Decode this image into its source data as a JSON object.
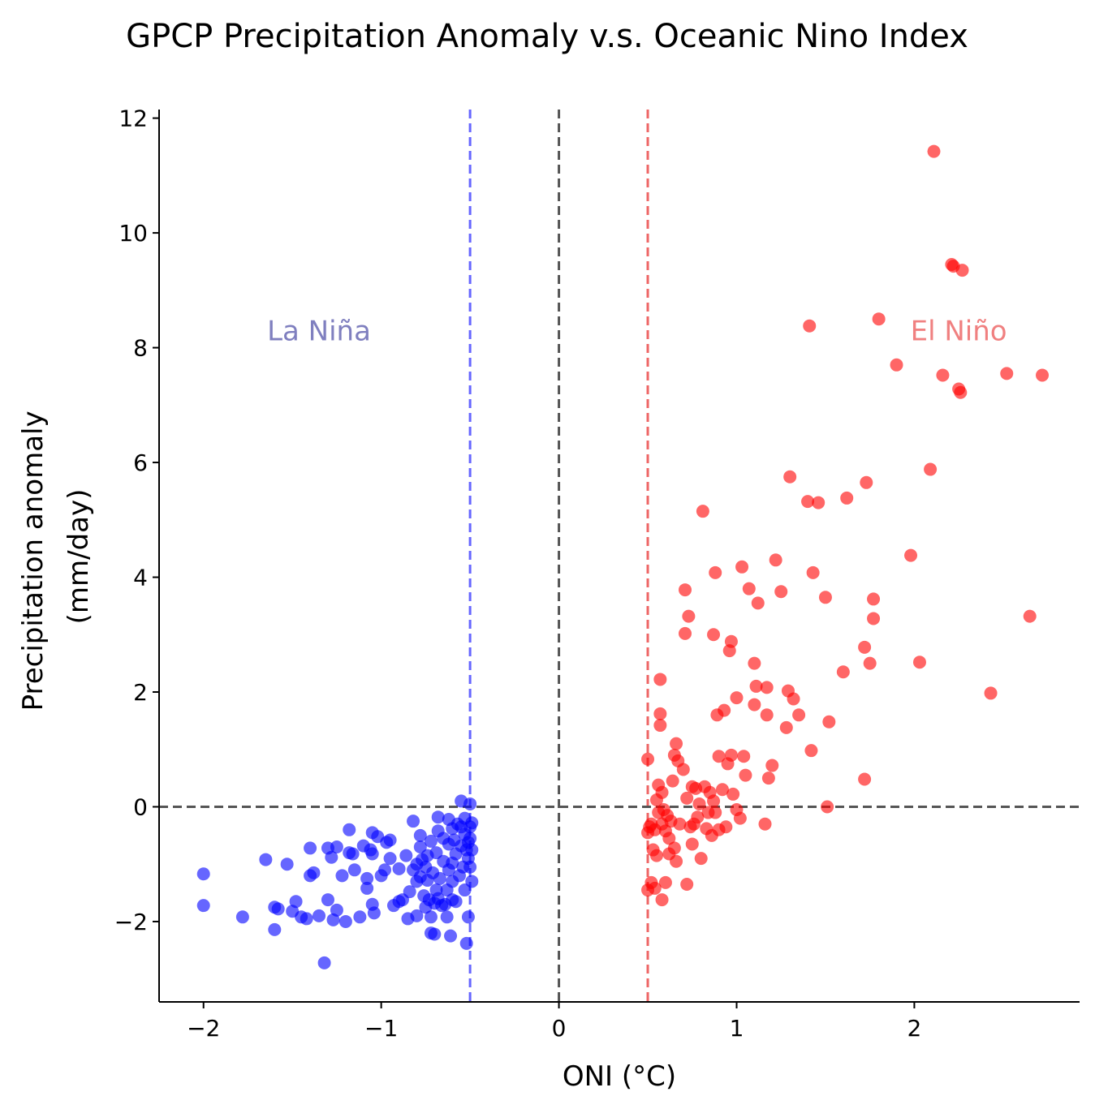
{
  "chart_data": {
    "type": "scatter",
    "title": "GPCP Precipitation Anomaly v.s. Oceanic Nino Index",
    "xlabel": "ONI (°C)",
    "ylabel_lines": [
      "Precipitation anomaly",
      "(mm/day)"
    ],
    "xlim": [
      -2.25,
      2.93
    ],
    "ylim": [
      -3.4,
      12.15
    ],
    "xticks": [
      {
        "value": -2,
        "label": "−2"
      },
      {
        "value": -1,
        "label": "−1"
      },
      {
        "value": 0,
        "label": "0"
      },
      {
        "value": 1,
        "label": "1"
      },
      {
        "value": 2,
        "label": "2"
      }
    ],
    "yticks": [
      {
        "value": -2,
        "label": "−2"
      },
      {
        "value": 0,
        "label": "0"
      },
      {
        "value": 2,
        "label": "2"
      },
      {
        "value": 4,
        "label": "4"
      },
      {
        "value": 6,
        "label": "6"
      },
      {
        "value": 8,
        "label": "8"
      },
      {
        "value": 10,
        "label": "10"
      },
      {
        "value": 12,
        "label": "12"
      }
    ],
    "reference_lines": [
      {
        "orientation": "vertical",
        "value": -0.5,
        "color": "#6666ff"
      },
      {
        "orientation": "vertical",
        "value": 0,
        "color": "#555555"
      },
      {
        "orientation": "vertical",
        "value": 0.5,
        "color": "#ee6666"
      },
      {
        "orientation": "horizontal",
        "value": 0,
        "color": "#555555"
      }
    ],
    "annotations": [
      {
        "text": "La Niña",
        "x": -1.35,
        "y": 8.3,
        "color": "#7f7fbf"
      },
      {
        "text": "El Niño",
        "x": 2.25,
        "y": 8.3,
        "color": "#f08080"
      }
    ],
    "series": [
      {
        "color": "#0000ff",
        "points": [
          [
            -2.0,
            -1.17
          ],
          [
            -2.0,
            -1.72
          ],
          [
            -1.78,
            -1.92
          ],
          [
            -1.65,
            -0.92
          ],
          [
            -1.6,
            -1.75
          ],
          [
            -1.6,
            -2.14
          ],
          [
            -1.58,
            -1.78
          ],
          [
            -1.53,
            -1.0
          ],
          [
            -1.5,
            -1.82
          ],
          [
            -1.48,
            -1.65
          ],
          [
            -1.45,
            -1.92
          ],
          [
            -1.42,
            -1.95
          ],
          [
            -1.4,
            -0.72
          ],
          [
            -1.4,
            -1.2
          ],
          [
            -1.38,
            -1.15
          ],
          [
            -1.35,
            -1.9
          ],
          [
            -1.32,
            -2.72
          ],
          [
            -1.3,
            -0.72
          ],
          [
            -1.3,
            -1.62
          ],
          [
            -1.28,
            -0.88
          ],
          [
            -1.27,
            -1.97
          ],
          [
            -1.25,
            -0.7
          ],
          [
            -1.25,
            -1.8
          ],
          [
            -1.22,
            -1.2
          ],
          [
            -1.2,
            -2.0
          ],
          [
            -1.18,
            -0.8
          ],
          [
            -1.18,
            -0.4
          ],
          [
            -1.16,
            -0.82
          ],
          [
            -1.15,
            -1.1
          ],
          [
            -1.12,
            -1.92
          ],
          [
            -1.1,
            -0.68
          ],
          [
            -1.08,
            -1.25
          ],
          [
            -1.08,
            -1.42
          ],
          [
            -1.06,
            -0.75
          ],
          [
            -1.05,
            -0.82
          ],
          [
            -1.05,
            -0.45
          ],
          [
            -1.05,
            -1.7
          ],
          [
            -1.04,
            -1.85
          ],
          [
            -1.02,
            -0.52
          ],
          [
            -1.0,
            -1.2
          ],
          [
            -0.98,
            -1.1
          ],
          [
            -0.97,
            -0.62
          ],
          [
            -0.95,
            -0.58
          ],
          [
            -0.95,
            -0.9
          ],
          [
            -0.93,
            -1.72
          ],
          [
            -0.9,
            -1.08
          ],
          [
            -0.9,
            -1.65
          ],
          [
            -0.88,
            -1.62
          ],
          [
            -0.86,
            -0.85
          ],
          [
            -0.85,
            -1.95
          ],
          [
            -0.84,
            -1.48
          ],
          [
            -0.82,
            -1.1
          ],
          [
            -0.82,
            -0.25
          ],
          [
            -0.8,
            -1.3
          ],
          [
            -0.8,
            -1.0
          ],
          [
            -0.8,
            -1.9
          ],
          [
            -0.78,
            -0.5
          ],
          [
            -0.78,
            -0.7
          ],
          [
            -0.78,
            -1.22
          ],
          [
            -0.77,
            -0.92
          ],
          [
            -0.76,
            -1.55
          ],
          [
            -0.75,
            -1.75
          ],
          [
            -0.75,
            -1.05
          ],
          [
            -0.74,
            -0.85
          ],
          [
            -0.74,
            -1.28
          ],
          [
            -0.73,
            -1.62
          ],
          [
            -0.72,
            -1.92
          ],
          [
            -0.72,
            -2.2
          ],
          [
            -0.72,
            -0.6
          ],
          [
            -0.71,
            -1.15
          ],
          [
            -0.7,
            -1.68
          ],
          [
            -0.7,
            -2.22
          ],
          [
            -0.69,
            -0.8
          ],
          [
            -0.69,
            -1.45
          ],
          [
            -0.68,
            -0.18
          ],
          [
            -0.68,
            -0.42
          ],
          [
            -0.68,
            -1.6
          ],
          [
            -0.67,
            -1.25
          ],
          [
            -0.66,
            -1.72
          ],
          [
            -0.65,
            -0.55
          ],
          [
            -0.65,
            -0.95
          ],
          [
            -0.64,
            -1.7
          ],
          [
            -0.63,
            -1.45
          ],
          [
            -0.63,
            -1.92
          ],
          [
            -0.62,
            -0.22
          ],
          [
            -0.62,
            -0.65
          ],
          [
            -0.62,
            -1.1
          ],
          [
            -0.61,
            -2.25
          ],
          [
            -0.6,
            -0.38
          ],
          [
            -0.6,
            -0.98
          ],
          [
            -0.6,
            -1.3
          ],
          [
            -0.6,
            -1.62
          ],
          [
            -0.59,
            -0.58
          ],
          [
            -0.58,
            -0.82
          ],
          [
            -0.58,
            -1.65
          ],
          [
            -0.57,
            -0.3
          ],
          [
            -0.56,
            -1.2
          ],
          [
            -0.55,
            0.1
          ],
          [
            -0.55,
            -0.35
          ],
          [
            -0.55,
            -0.68
          ],
          [
            -0.54,
            -1.05
          ],
          [
            -0.53,
            -0.2
          ],
          [
            -0.53,
            -0.48
          ],
          [
            -0.53,
            -1.45
          ],
          [
            -0.52,
            -2.38
          ],
          [
            -0.52,
            -0.75
          ],
          [
            -0.51,
            -0.62
          ],
          [
            -0.51,
            -0.9
          ],
          [
            -0.51,
            -1.92
          ],
          [
            -0.5,
            0.05
          ],
          [
            -0.5,
            -0.35
          ],
          [
            -0.5,
            -0.55
          ],
          [
            -0.5,
            -1.05
          ],
          [
            -0.49,
            -0.28
          ],
          [
            -0.49,
            -0.75
          ],
          [
            -0.49,
            -1.3
          ]
        ]
      },
      {
        "color": "#ff0000",
        "points": [
          [
            0.5,
            0.83
          ],
          [
            0.5,
            -1.45
          ],
          [
            0.5,
            -0.45
          ],
          [
            0.51,
            -0.35
          ],
          [
            0.52,
            -0.3
          ],
          [
            0.52,
            -1.32
          ],
          [
            0.53,
            -0.75
          ],
          [
            0.54,
            -0.4
          ],
          [
            0.54,
            -1.42
          ],
          [
            0.55,
            0.12
          ],
          [
            0.55,
            -0.85
          ],
          [
            0.56,
            0.38
          ],
          [
            0.56,
            -0.1
          ],
          [
            0.57,
            2.22
          ],
          [
            0.57,
            1.62
          ],
          [
            0.57,
            1.42
          ],
          [
            0.58,
            -0.3
          ],
          [
            0.58,
            -1.62
          ],
          [
            0.58,
            0.25
          ],
          [
            0.59,
            -0.05
          ],
          [
            0.6,
            -0.42
          ],
          [
            0.6,
            -1.32
          ],
          [
            0.61,
            -0.15
          ],
          [
            0.62,
            -0.55
          ],
          [
            0.62,
            -0.82
          ],
          [
            0.63,
            -0.25
          ],
          [
            0.64,
            0.45
          ],
          [
            0.65,
            0.9
          ],
          [
            0.65,
            -0.72
          ],
          [
            0.66,
            1.1
          ],
          [
            0.66,
            -0.95
          ],
          [
            0.67,
            0.8
          ],
          [
            0.68,
            -0.3
          ],
          [
            0.7,
            0.65
          ],
          [
            0.71,
            3.78
          ],
          [
            0.71,
            3.02
          ],
          [
            0.72,
            -1.35
          ],
          [
            0.72,
            0.15
          ],
          [
            0.73,
            3.32
          ],
          [
            0.74,
            -0.35
          ],
          [
            0.75,
            0.35
          ],
          [
            0.75,
            -0.65
          ],
          [
            0.76,
            -0.3
          ],
          [
            0.77,
            0.32
          ],
          [
            0.78,
            -0.18
          ],
          [
            0.79,
            0.05
          ],
          [
            0.8,
            -0.9
          ],
          [
            0.81,
            5.15
          ],
          [
            0.82,
            0.35
          ],
          [
            0.83,
            -0.38
          ],
          [
            0.84,
            -0.1
          ],
          [
            0.85,
            0.25
          ],
          [
            0.86,
            -0.5
          ],
          [
            0.87,
            3.0
          ],
          [
            0.87,
            0.1
          ],
          [
            0.88,
            4.08
          ],
          [
            0.88,
            -0.1
          ],
          [
            0.89,
            1.6
          ],
          [
            0.9,
            -0.4
          ],
          [
            0.9,
            0.88
          ],
          [
            0.92,
            0.3
          ],
          [
            0.93,
            1.68
          ],
          [
            0.94,
            -0.35
          ],
          [
            0.95,
            0.75
          ],
          [
            0.96,
            2.72
          ],
          [
            0.97,
            2.88
          ],
          [
            0.97,
            0.9
          ],
          [
            0.98,
            0.22
          ],
          [
            1.0,
            1.9
          ],
          [
            1.0,
            -0.05
          ],
          [
            1.02,
            -0.2
          ],
          [
            1.03,
            4.18
          ],
          [
            1.04,
            0.88
          ],
          [
            1.05,
            0.55
          ],
          [
            1.07,
            3.8
          ],
          [
            1.1,
            2.5
          ],
          [
            1.1,
            1.78
          ],
          [
            1.11,
            2.1
          ],
          [
            1.12,
            3.55
          ],
          [
            1.16,
            -0.3
          ],
          [
            1.17,
            2.08
          ],
          [
            1.17,
            1.6
          ],
          [
            1.18,
            0.5
          ],
          [
            1.2,
            0.72
          ],
          [
            1.22,
            4.3
          ],
          [
            1.25,
            3.75
          ],
          [
            1.28,
            1.38
          ],
          [
            1.29,
            2.02
          ],
          [
            1.3,
            5.75
          ],
          [
            1.32,
            1.88
          ],
          [
            1.35,
            1.6
          ],
          [
            1.4,
            5.32
          ],
          [
            1.41,
            8.38
          ],
          [
            1.42,
            0.98
          ],
          [
            1.43,
            4.08
          ],
          [
            1.46,
            5.3
          ],
          [
            1.5,
            3.65
          ],
          [
            1.51,
            0.0
          ],
          [
            1.52,
            1.48
          ],
          [
            1.6,
            2.35
          ],
          [
            1.62,
            5.38
          ],
          [
            1.72,
            2.78
          ],
          [
            1.72,
            0.48
          ],
          [
            1.73,
            5.65
          ],
          [
            1.75,
            2.5
          ],
          [
            1.77,
            3.28
          ],
          [
            1.77,
            3.62
          ],
          [
            1.8,
            8.5
          ],
          [
            1.9,
            7.7
          ],
          [
            1.98,
            4.38
          ],
          [
            2.03,
            2.52
          ],
          [
            2.09,
            5.88
          ],
          [
            2.11,
            11.42
          ],
          [
            2.16,
            7.52
          ],
          [
            2.21,
            9.45
          ],
          [
            2.22,
            9.42
          ],
          [
            2.25,
            7.28
          ],
          [
            2.26,
            7.22
          ],
          [
            2.27,
            9.35
          ],
          [
            2.43,
            1.98
          ],
          [
            2.52,
            7.55
          ],
          [
            2.65,
            3.32
          ],
          [
            2.72,
            7.52
          ]
        ]
      }
    ]
  }
}
